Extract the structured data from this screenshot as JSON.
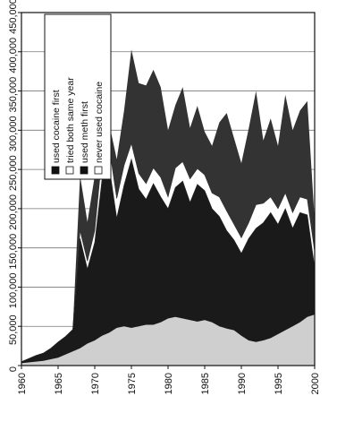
{
  "chart_data": {
    "type": "area",
    "orientation": "rotated-90-counterclockwise",
    "stacked": true,
    "x": [
      1960,
      1961,
      1962,
      1963,
      1964,
      1965,
      1966,
      1967,
      1968,
      1969,
      1970,
      1971,
      1972,
      1973,
      1974,
      1975,
      1976,
      1977,
      1978,
      1979,
      1980,
      1981,
      1982,
      1983,
      1984,
      1985,
      1986,
      1987,
      1988,
      1989,
      1990,
      1991,
      1992,
      1993,
      1994,
      1995,
      1996,
      1997,
      1998,
      1999,
      2000
    ],
    "series": [
      {
        "name": "never used cocaine",
        "values": [
          3000,
          4000,
          5000,
          6000,
          8000,
          10000,
          14000,
          18000,
          22000,
          28000,
          32000,
          38000,
          42000,
          48000,
          50000,
          48000,
          50000,
          52000,
          52000,
          55000,
          60000,
          62000,
          60000,
          58000,
          56000,
          58000,
          55000,
          50000,
          47000,
          45000,
          38000,
          32000,
          30000,
          32000,
          35000,
          40000,
          45000,
          50000,
          55000,
          62000,
          65000
        ],
        "color": "#cfcfcf"
      },
      {
        "name": "used meth first",
        "values": [
          2000,
          5000,
          8000,
          10000,
          14000,
          20000,
          23000,
          28000,
          140000,
          95000,
          125000,
          200000,
          210000,
          140000,
          180000,
          215000,
          175000,
          160000,
          180000,
          160000,
          140000,
          165000,
          175000,
          150000,
          175000,
          165000,
          145000,
          140000,
          125000,
          115000,
          105000,
          130000,
          145000,
          150000,
          160000,
          140000,
          155000,
          125000,
          140000,
          130000,
          60000
        ],
        "color": "#1a1a1a"
      },
      {
        "name": "tried both same year",
        "values": [
          0,
          0,
          0,
          0,
          0,
          0,
          0,
          0,
          10000,
          10000,
          15000,
          30000,
          25000,
          25000,
          25000,
          20000,
          20000,
          20000,
          20000,
          25000,
          15000,
          25000,
          25000,
          30000,
          20000,
          20000,
          20000,
          25000,
          25000,
          20000,
          20000,
          20000,
          30000,
          25000,
          20000,
          20000,
          20000,
          20000,
          20000,
          20000,
          20000
        ],
        "color": "#ffffff"
      },
      {
        "name": "used cocaine first",
        "values": [
          0,
          0,
          0,
          0,
          0,
          0,
          0,
          0,
          70000,
          50000,
          70000,
          30000,
          30000,
          50000,
          70000,
          120000,
          115000,
          125000,
          125000,
          115000,
          85000,
          80000,
          95000,
          65000,
          80000,
          55000,
          60000,
          95000,
          125000,
          110000,
          95000,
          120000,
          145000,
          80000,
          100000,
          80000,
          125000,
          105000,
          110000,
          125000,
          40000
        ],
        "color": "#333333"
      }
    ],
    "xlim": [
      1960,
      2000
    ],
    "ylim": [
      0,
      450000
    ],
    "x_ticks": [
      1960,
      1965,
      1970,
      1975,
      1980,
      1985,
      1990,
      1995,
      2000
    ],
    "y_ticks": [
      "0",
      "50,000",
      "100,000",
      "150,000",
      "200,000",
      "250,000",
      "300,000",
      "350,000",
      "400,000",
      "450,000"
    ],
    "y_tick_values": [
      0,
      50000,
      100000,
      150000,
      200000,
      250000,
      300000,
      350000,
      400000,
      450000
    ],
    "legend": [
      "used cocaine first",
      "tried both same year",
      "used meth first",
      "never used cocaine"
    ],
    "legend_position": "top-left",
    "grid": "horizontal"
  }
}
